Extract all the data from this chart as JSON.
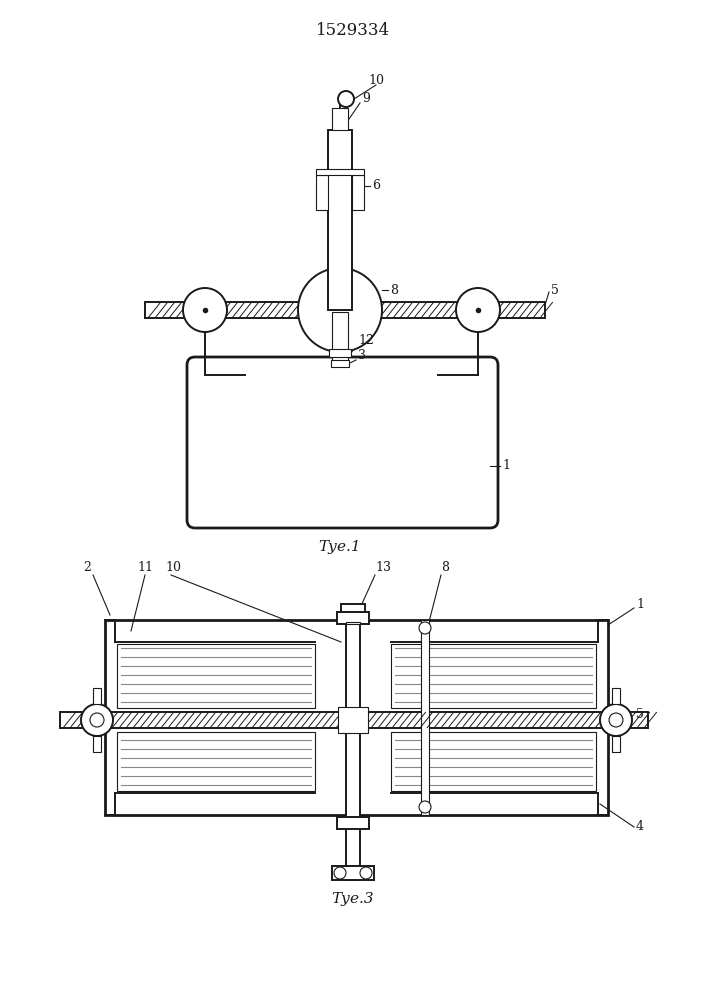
{
  "title": "1529334",
  "fig1_label": "Τуе.1",
  "fig3_label": "Τуе.3",
  "bg_color": "#ffffff",
  "line_color": "#1a1a1a"
}
